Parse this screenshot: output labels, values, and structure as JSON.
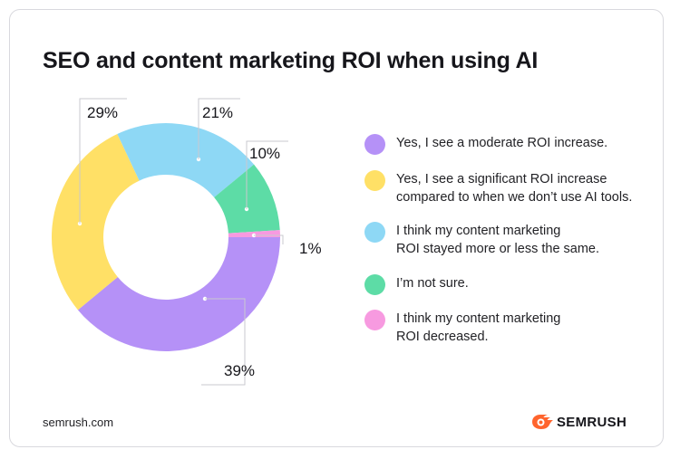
{
  "title": "SEO and content marketing ROI when using AI",
  "footer": {
    "source": "semrush.com",
    "brand": "SEMRUSH"
  },
  "colors": {
    "moderate": "#b591f7",
    "significant": "#ffe066",
    "same": "#8ed8f5",
    "not_sure": "#5ddca6",
    "decreased": "#f79ae0"
  },
  "chart_data": {
    "type": "pie",
    "donut": true,
    "title": "SEO and content marketing ROI when using AI",
    "slices": [
      {
        "label": "Yes, I see a moderate ROI increase.",
        "value": 39,
        "display": "39%",
        "color": "#b591f7"
      },
      {
        "label": "Yes, I see a significant ROI increase compared to when we don’t use AI tools.",
        "value": 29,
        "display": "29%",
        "color": "#ffe066"
      },
      {
        "label": "I think my content marketing ROI stayed more or less the same.",
        "value": 21,
        "display": "21%",
        "color": "#8ed8f5"
      },
      {
        "label": "I’m not sure.",
        "value": 10,
        "display": "10%",
        "color": "#5ddca6"
      },
      {
        "label": "I think my content marketing ROI decreased.",
        "value": 1,
        "display": "1%",
        "color": "#f79ae0"
      }
    ],
    "legend": {
      "placement": "right",
      "items": [
        {
          "line1": "Yes, I see a moderate ROI increase.",
          "line2": "",
          "color": "#b591f7"
        },
        {
          "line1": "Yes, I see a significant ROI increase",
          "line2": "compared to when we don’t use AI tools.",
          "color": "#ffe066"
        },
        {
          "line1": "I think my content marketing",
          "line2": "ROI stayed more or less the same.",
          "color": "#8ed8f5"
        },
        {
          "line1": "I’m not sure.",
          "line2": "",
          "color": "#5ddca6"
        },
        {
          "line1": "I think my content marketing",
          "line2": "ROI decreased.",
          "color": "#f79ae0"
        }
      ]
    }
  }
}
